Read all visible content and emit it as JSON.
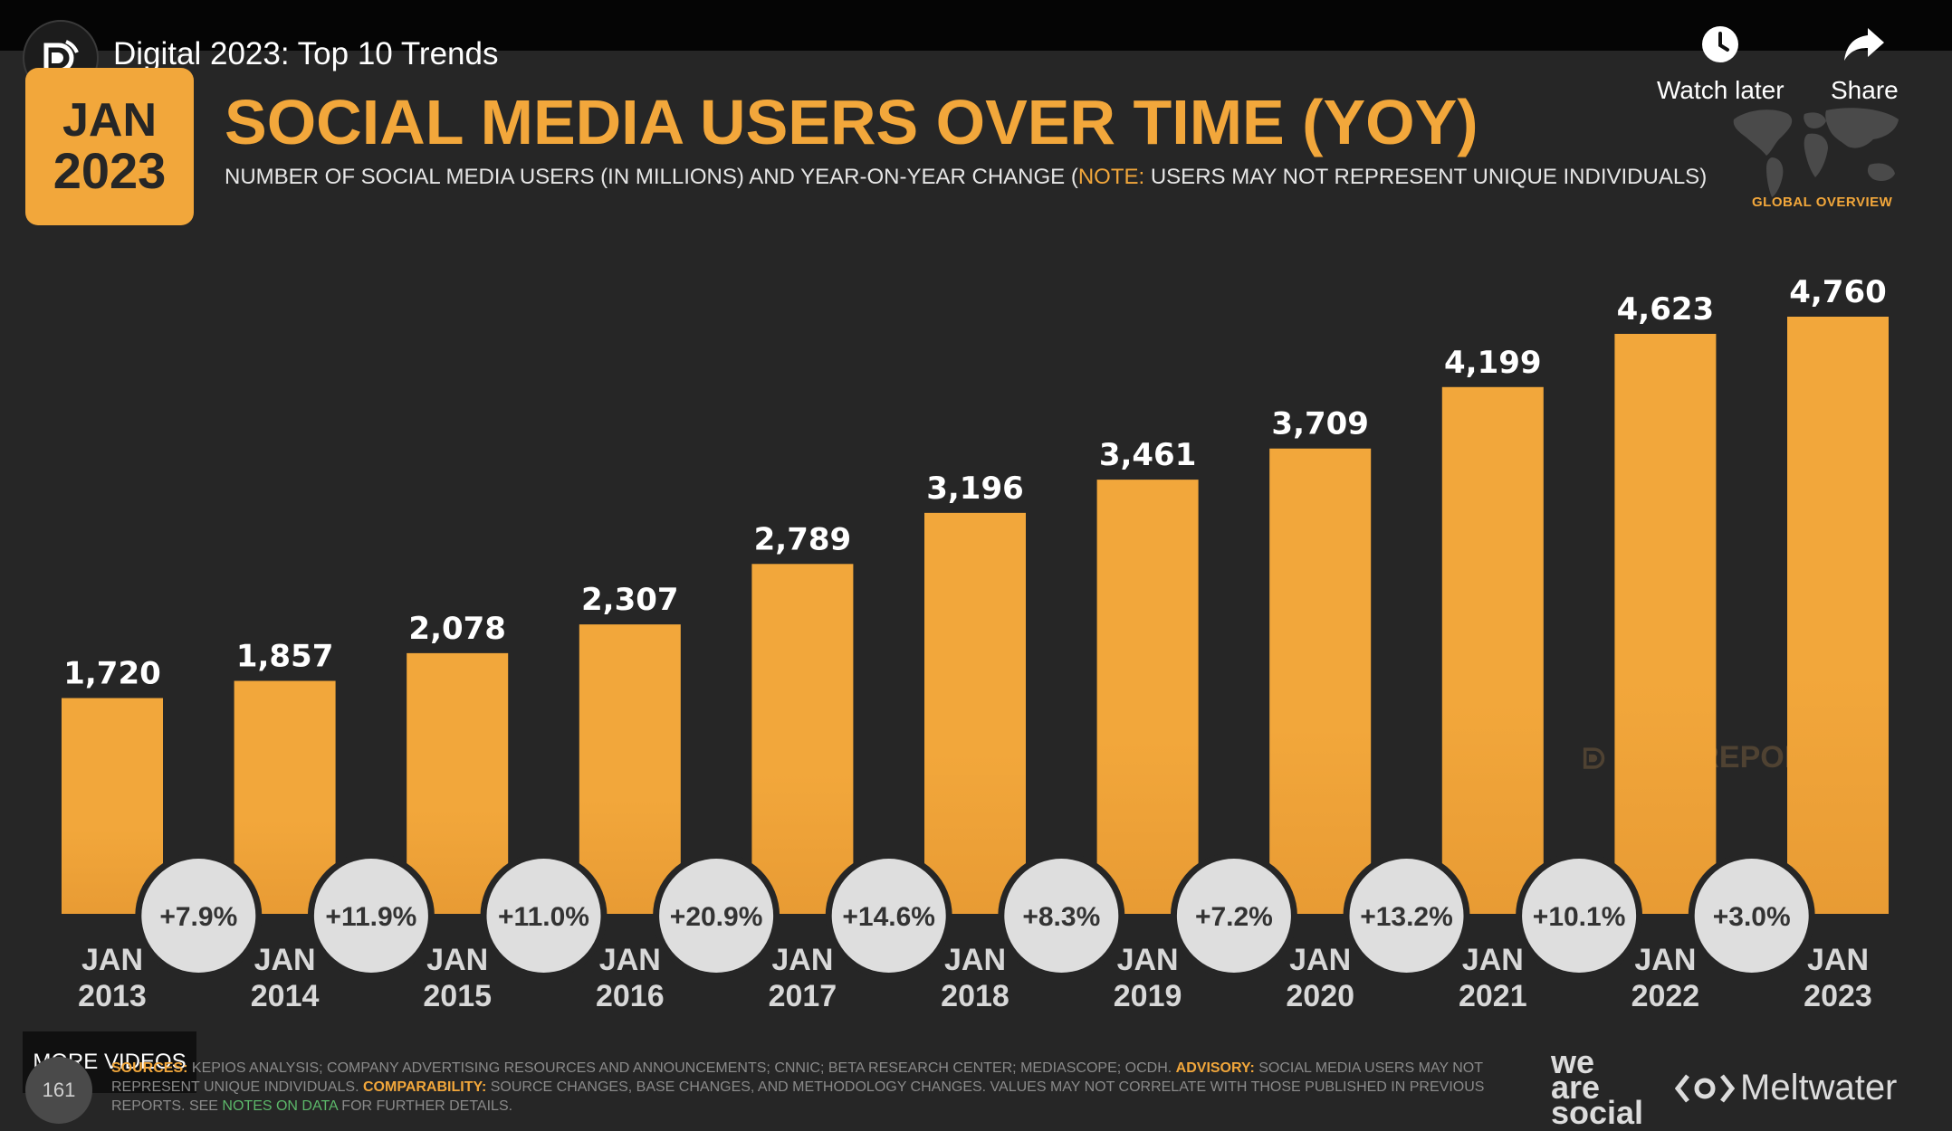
{
  "video": {
    "title": "Digital 2023: Top 10 Trends",
    "watch_later_label": "Watch later",
    "share_label": "Share",
    "more_videos_label": "MORE VIDEOS",
    "views_count": "161",
    "channel_icon": "datareportal-logo-icon"
  },
  "slide": {
    "badge_month": "JAN",
    "badge_year": "2023",
    "title": "SOCIAL MEDIA USERS OVER TIME (YOY)",
    "subtitle_pre": "NUMBER OF SOCIAL MEDIA USERS (IN MILLIONS) AND YEAR-ON-YEAR CHANGE (",
    "subtitle_note": "NOTE:",
    "subtitle_post": " USERS MAY NOT REPRESENT UNIQUE INDIVIDUALS)",
    "global_overview": "GLOBAL OVERVIEW",
    "watermark": "DATAREPORTAL",
    "footer": {
      "sources_label": "SOURCES:",
      "sources_text": "KEPIOS ANALYSIS; COMPANY ADVERTISING RESOURCES AND ANNOUNCEMENTS; CNNIC; BETA RESEARCH CENTER; MEDIASCOPE; OCDH.",
      "advisory_label": "ADVISORY:",
      "advisory_text": "SOCIAL MEDIA USERS MAY NOT REPRESENT UNIQUE INDIVIDUALS.",
      "comparability_label": "COMPARABILITY:",
      "comparability_text": "SOURCE CHANGES, BASE CHANGES, AND METHODOLOGY CHANGES. VALUES MAY NOT CORRELATE WITH THOSE PUBLISHED IN PREVIOUS REPORTS. SEE",
      "notes_link": "NOTES ON DATA",
      "footer_tail": "FOR FURTHER DETAILS."
    },
    "brand_weare": [
      "we",
      "are",
      "social"
    ],
    "brand_meltwater": "Meltwater"
  },
  "colors": {
    "accent": "#f2a73b",
    "background": "#262626",
    "bubble": "#dedede",
    "bubble_text": "#333333"
  },
  "chart_data": {
    "type": "bar",
    "title": "SOCIAL MEDIA USERS OVER TIME (YOY)",
    "categories": [
      [
        "JAN",
        "2013"
      ],
      [
        "JAN",
        "2014"
      ],
      [
        "JAN",
        "2015"
      ],
      [
        "JAN",
        "2016"
      ],
      [
        "JAN",
        "2017"
      ],
      [
        "JAN",
        "2018"
      ],
      [
        "JAN",
        "2019"
      ],
      [
        "JAN",
        "2020"
      ],
      [
        "JAN",
        "2021"
      ],
      [
        "JAN",
        "2022"
      ],
      [
        "JAN",
        "2023"
      ]
    ],
    "values": [
      1720,
      1857,
      2078,
      2307,
      2789,
      3196,
      3461,
      3709,
      4199,
      4623,
      4760
    ],
    "value_labels": [
      "1,720",
      "1,857",
      "2,078",
      "2,307",
      "2,789",
      "3,196",
      "3,461",
      "3,709",
      "4,199",
      "4,623",
      "4,760"
    ],
    "yoy_change": [
      "+7.9%",
      "+11.9%",
      "+11.0%",
      "+20.9%",
      "+14.6%",
      "+8.3%",
      "+7.2%",
      "+13.2%",
      "+10.1%",
      "+3.0%"
    ],
    "ylim": [
      0,
      4760
    ],
    "grid": false,
    "legend": "none"
  }
}
